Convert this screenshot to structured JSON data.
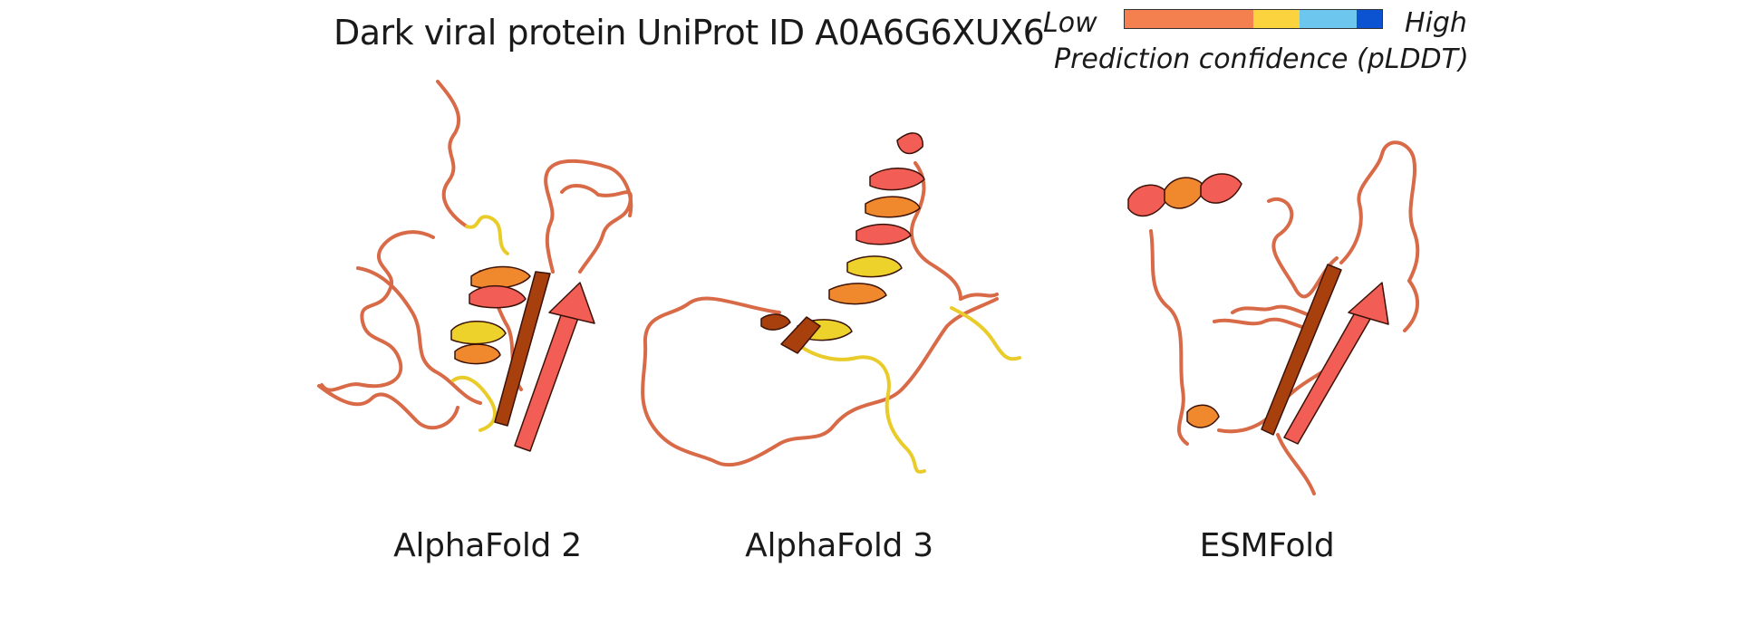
{
  "title": "Dark viral protein UniProt ID A0A6G6XUX6",
  "legend": {
    "low_label": "Low",
    "high_label": "High",
    "caption": "Prediction confidence (pLDDT)",
    "segments": [
      {
        "color": "#f5804f",
        "fraction": 0.5
      },
      {
        "color": "#fad33f",
        "fraction": 0.18
      },
      {
        "color": "#6cc6ed",
        "fraction": 0.22
      },
      {
        "color": "#0b53d0",
        "fraction": 0.1
      }
    ]
  },
  "colors": {
    "coil": "#d96a47",
    "coil_yellow": "#e9cc2a",
    "helix_red": "#f25d55",
    "helix_orange": "#f0882e",
    "helix_yellow": "#ecd22a",
    "strand_red": "#f25d55",
    "strand_dark": "#a8400e",
    "dark_edge": "#3b1208"
  },
  "models": [
    {
      "name": "AlphaFold 2"
    },
    {
      "name": "AlphaFold 3"
    },
    {
      "name": "ESMFold"
    }
  ]
}
